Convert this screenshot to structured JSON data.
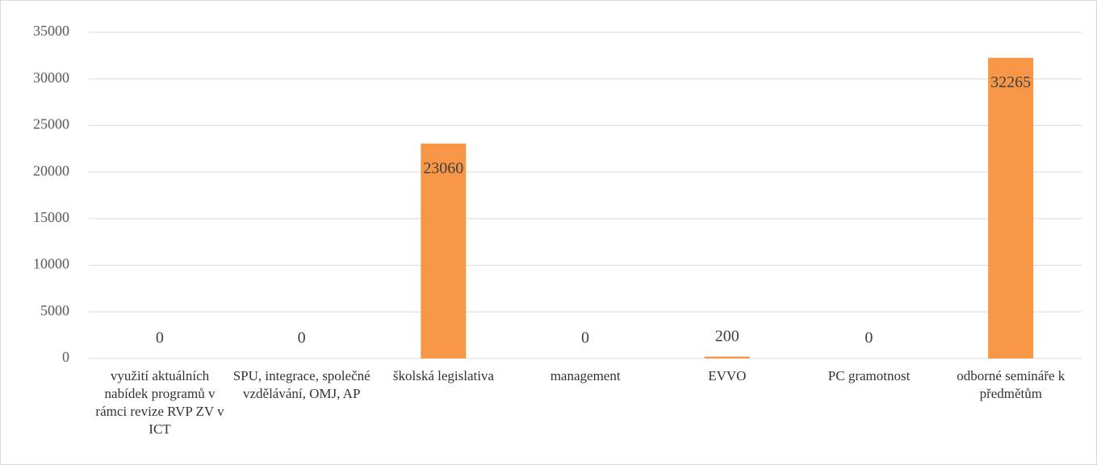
{
  "chart_data": {
    "type": "bar",
    "categories": [
      "využití aktuálních nabídek programů v rámci revize RVP ZV v ICT",
      "SPU, integrace, společné vzdělávání, OMJ, AP",
      "školská legislativa",
      "management",
      "EVVO",
      "PC gramotnost",
      "odborné semináře k předmětům"
    ],
    "values": [
      0,
      0,
      23060,
      0,
      200,
      0,
      32265
    ],
    "color": "#f79646",
    "ylim": [
      0,
      35000
    ],
    "yticks": [
      0,
      5000,
      10000,
      15000,
      20000,
      25000,
      30000,
      35000
    ],
    "grid": true
  }
}
